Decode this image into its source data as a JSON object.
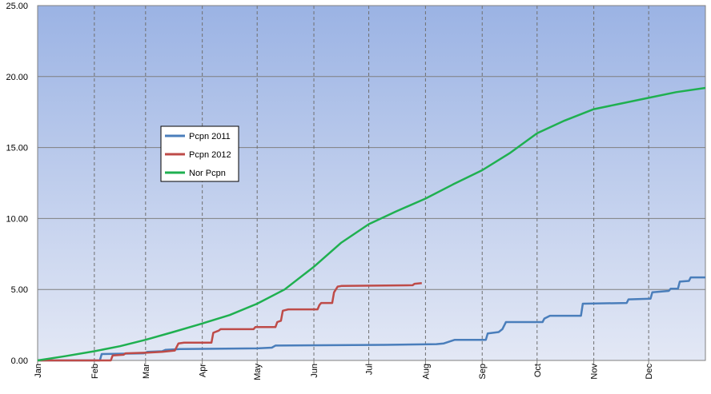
{
  "chart_data": {
    "type": "line",
    "xlim": [
      0,
      365
    ],
    "xticks": [
      {
        "value": 0,
        "label": "Jan"
      },
      {
        "value": 31,
        "label": "Feb"
      },
      {
        "value": 59,
        "label": "Mar"
      },
      {
        "value": 90,
        "label": "Apr"
      },
      {
        "value": 120,
        "label": "May"
      },
      {
        "value": 151,
        "label": "Jun"
      },
      {
        "value": 181,
        "label": "Jul"
      },
      {
        "value": 212,
        "label": "Aug"
      },
      {
        "value": 243,
        "label": "Sep"
      },
      {
        "value": 273,
        "label": "Oct"
      },
      {
        "value": 304,
        "label": "Nov"
      },
      {
        "value": 334,
        "label": "Dec"
      }
    ],
    "ylim": [
      0,
      25
    ],
    "yticks": [
      {
        "value": 0,
        "label": "0.00"
      },
      {
        "value": 5,
        "label": "5.00"
      },
      {
        "value": 10,
        "label": "10.00"
      },
      {
        "value": 15,
        "label": "15.00"
      },
      {
        "value": 20,
        "label": "20.00"
      },
      {
        "value": 25,
        "label": "25.00"
      }
    ],
    "grid": true,
    "legend": "upper-left",
    "series": [
      {
        "name": "Pcpn 2011",
        "color": "#4a7ebb",
        "x": [
          0,
          34,
          35,
          58,
          60,
          68,
          70,
          78,
          120,
          128,
          130,
          190,
          218,
          222,
          228,
          245,
          246,
          252,
          254,
          256,
          276,
          277,
          280,
          297,
          298,
          322,
          323,
          335,
          336,
          345,
          346,
          350,
          351,
          356,
          357,
          365
        ],
        "values": [
          0,
          0,
          0.45,
          0.5,
          0.6,
          0.65,
          0.75,
          0.8,
          0.85,
          0.9,
          1.05,
          1.1,
          1.15,
          1.2,
          1.45,
          1.45,
          1.9,
          2.0,
          2.2,
          2.7,
          2.7,
          2.95,
          3.15,
          3.15,
          4.0,
          4.05,
          4.3,
          4.35,
          4.8,
          4.9,
          5.05,
          5.05,
          5.55,
          5.6,
          5.85,
          5.85
        ]
      },
      {
        "name": "Pcpn 2012",
        "color": "#be4b48",
        "x": [
          0,
          40,
          41,
          47,
          48,
          60,
          68,
          75,
          77,
          80,
          95,
          96,
          99,
          100,
          118,
          119,
          130,
          131,
          133,
          134,
          137,
          153,
          154,
          155,
          161,
          162,
          164,
          166,
          205,
          206,
          210
        ],
        "values": [
          0,
          0,
          0.35,
          0.4,
          0.5,
          0.55,
          0.6,
          0.7,
          1.2,
          1.25,
          1.25,
          1.95,
          2.1,
          2.2,
          2.2,
          2.35,
          2.35,
          2.7,
          2.8,
          3.5,
          3.6,
          3.6,
          3.9,
          4.05,
          4.05,
          4.8,
          5.2,
          5.25,
          5.3,
          5.4,
          5.45
        ]
      },
      {
        "name": "Nor Pcpn",
        "color": "#1fb050",
        "x": [
          0,
          15,
          31,
          45,
          59,
          74,
          90,
          105,
          120,
          135,
          151,
          166,
          181,
          196,
          212,
          227,
          243,
          258,
          273,
          288,
          304,
          319,
          334,
          349,
          365
        ],
        "values": [
          0,
          0.3,
          0.65,
          1.0,
          1.45,
          2.0,
          2.6,
          3.2,
          4.0,
          5.0,
          6.6,
          8.3,
          9.6,
          10.5,
          11.4,
          12.4,
          13.4,
          14.6,
          16.0,
          16.9,
          17.7,
          18.1,
          18.5,
          18.9,
          19.2
        ]
      }
    ]
  }
}
